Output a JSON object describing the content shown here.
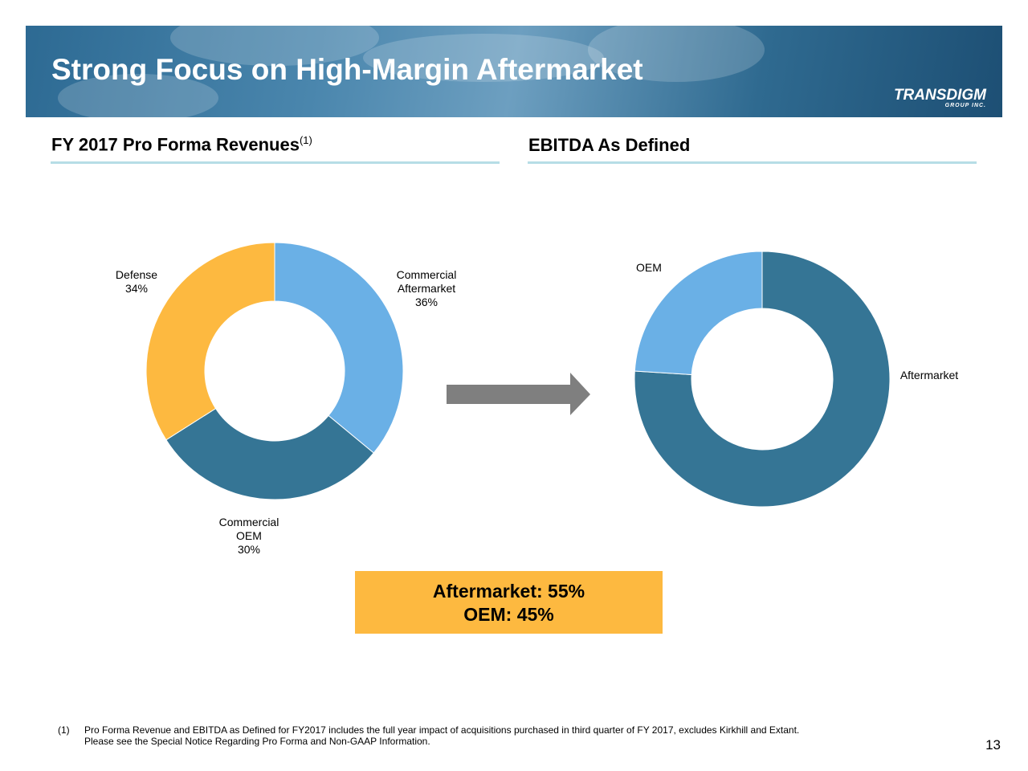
{
  "header": {
    "title": "Strong Focus on High-Margin Aftermarket",
    "logo": "TRANSDIGM",
    "logo_sub": "GROUP INC."
  },
  "chart_data": [
    {
      "type": "donut",
      "title": "FY 2017 Pro Forma Revenues",
      "title_note": "(1)",
      "categories": [
        "Commercial Aftermarket",
        "Commercial OEM",
        "Defense"
      ],
      "values": [
        36,
        30,
        34
      ],
      "value_labels": [
        "36%",
        "30%",
        "34%"
      ],
      "colors": [
        "#6ab0e6",
        "#357595",
        "#fdb940"
      ]
    },
    {
      "type": "donut",
      "title": "EBITDA As Defined",
      "categories": [
        "Aftermarket",
        "OEM"
      ],
      "values": [
        76,
        24
      ],
      "colors": [
        "#357595",
        "#6ab0e6"
      ]
    }
  ],
  "callout": [
    "Aftermarket: 55%",
    "OEM: 45%"
  ],
  "footnote": {
    "marker": "(1)",
    "lines": [
      "Pro Forma Revenue and EBITDA as Defined for FY2017 includes the full year impact of acquisitions purchased in third quarter of FY 2017, excludes Kirkhill and Extant.",
      "Please see the Special Notice Regarding Pro Forma and Non-GAAP Information."
    ]
  },
  "page_number": "13"
}
